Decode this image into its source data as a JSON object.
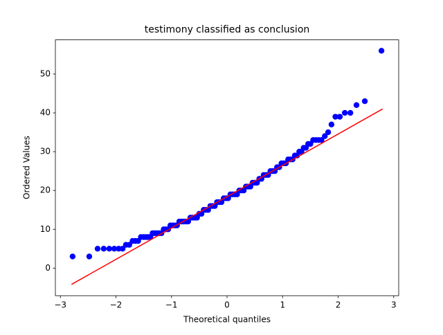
{
  "chart_data": {
    "type": "scatter",
    "title": "testimony classified as conclusion",
    "xlabel": "Theoretical quantiles",
    "ylabel": "Ordered Values",
    "xlim": [
      -3.09,
      3.09
    ],
    "ylim": [
      -7.1,
      58.8
    ],
    "xticks": [
      {
        "value": -3,
        "label": "−3"
      },
      {
        "value": -2,
        "label": "−2"
      },
      {
        "value": -1,
        "label": "−1"
      },
      0,
      1,
      2,
      3
    ],
    "yticks": [
      0,
      10,
      20,
      30,
      40,
      50
    ],
    "series": [
      {
        "color": "#0000ff",
        "x": [
          -2.78,
          -2.48,
          -2.33,
          -2.22,
          -2.12,
          -2.03,
          -1.95,
          -1.88,
          -1.82,
          -1.76,
          -1.7,
          -1.65,
          -1.6,
          -1.55,
          -1.5,
          -1.46,
          -1.42,
          -1.38,
          -1.34,
          -1.3,
          -1.26,
          -1.22,
          -1.18,
          -1.14,
          -1.1,
          -1.06,
          -1.02,
          -0.98,
          -0.94,
          -0.9,
          -0.86,
          -0.82,
          -0.78,
          -0.74,
          -0.7,
          -0.66,
          -0.62,
          -0.58,
          -0.54,
          -0.5,
          -0.46,
          -0.42,
          -0.38,
          -0.34,
          -0.3,
          -0.26,
          -0.22,
          -0.18,
          -0.14,
          -0.1,
          -0.06,
          -0.02,
          0.02,
          0.06,
          0.1,
          0.14,
          0.18,
          0.22,
          0.26,
          0.3,
          0.34,
          0.38,
          0.42,
          0.46,
          0.5,
          0.54,
          0.58,
          0.62,
          0.66,
          0.7,
          0.74,
          0.78,
          0.82,
          0.86,
          0.9,
          0.94,
          0.98,
          1.02,
          1.06,
          1.1,
          1.14,
          1.18,
          1.22,
          1.26,
          1.3,
          1.34,
          1.38,
          1.42,
          1.46,
          1.5,
          1.55,
          1.6,
          1.65,
          1.7,
          1.76,
          1.82,
          1.88,
          1.95,
          2.03,
          2.12,
          2.22,
          2.33,
          2.48,
          2.78
        ],
        "values": [
          3,
          3,
          5,
          5,
          5,
          5,
          5,
          5,
          6,
          6,
          7,
          7,
          7,
          8,
          8,
          8,
          8,
          8,
          9,
          9,
          9,
          9,
          9,
          10,
          10,
          10,
          11,
          11,
          11,
          11,
          12,
          12,
          12,
          12,
          12,
          13,
          13,
          13,
          13,
          14,
          14,
          15,
          15,
          15,
          16,
          16,
          16,
          17,
          17,
          17,
          18,
          18,
          18,
          19,
          19,
          19,
          19,
          20,
          20,
          20,
          21,
          21,
          21,
          22,
          22,
          22,
          23,
          23,
          24,
          24,
          24,
          25,
          25,
          25,
          26,
          26,
          27,
          27,
          27,
          28,
          28,
          28,
          29,
          29,
          30,
          30,
          31,
          31,
          32,
          32,
          33,
          33,
          33,
          33,
          34,
          35,
          37,
          39,
          39,
          40,
          40,
          42,
          43,
          56
        ]
      }
    ],
    "fit_line": {
      "color": "#ff0000",
      "x": [
        -2.8,
        2.8
      ],
      "values": [
        -4.2,
        41
      ]
    }
  }
}
